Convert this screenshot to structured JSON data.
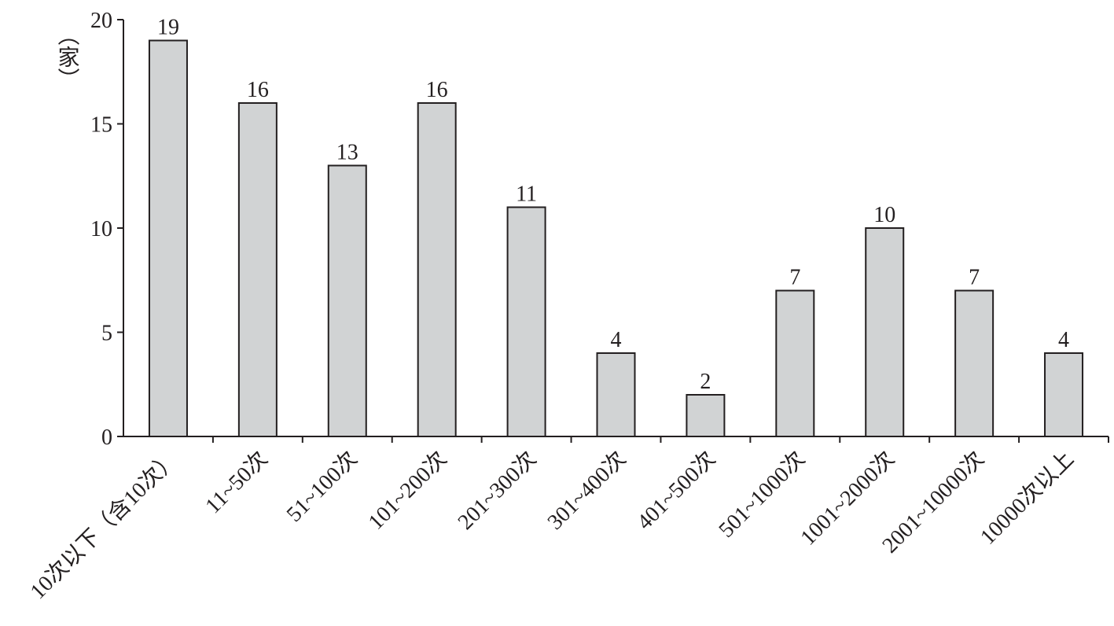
{
  "chart_data": {
    "type": "bar",
    "y_label": "（家）",
    "categories": [
      "10次以下（含10次）",
      "11~50次",
      "51~100次",
      "101~200次",
      "201~300次",
      "301~400次",
      "401~500次",
      "501~1000次",
      "1001~2000次",
      "2001~10000次",
      "10000次以上"
    ],
    "values": [
      19,
      16,
      13,
      16,
      11,
      4,
      2,
      7,
      10,
      7,
      4
    ],
    "color": "#d1d3d4",
    "ylim": [
      0,
      20
    ],
    "yticks": [
      0,
      5,
      10,
      15,
      20
    ],
    "grid": false
  }
}
